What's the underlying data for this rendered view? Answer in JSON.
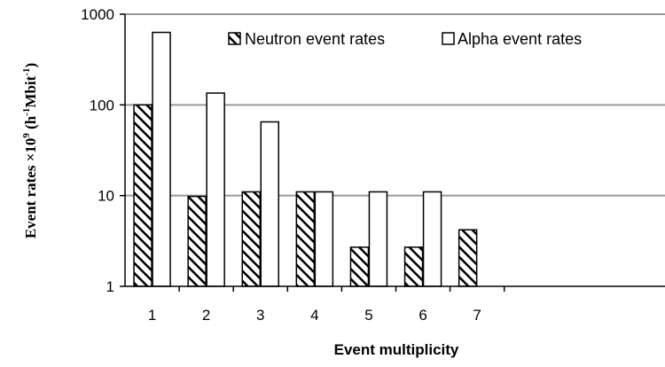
{
  "chart_data": {
    "type": "bar",
    "yscale": "log",
    "ylim": [
      1,
      1000
    ],
    "yticks": [
      "1",
      "10",
      "100",
      "1000"
    ],
    "categories": [
      "1",
      "2",
      "3",
      "4",
      "5",
      "6",
      "7"
    ],
    "xlabel": "Event multiplicity",
    "ylabel": {
      "main": "Event rates ×10",
      "exp": "9",
      "unit_open": " (h",
      "unit_exp1": "-1",
      "unit_mid": "Mbit",
      "unit_exp2": "-1",
      "unit_close": ")"
    },
    "grid": "horizontal",
    "legend_position": "top-right",
    "series": [
      {
        "name": "Neutron event rates",
        "style": "hatched",
        "values": [
          100,
          9.8,
          11,
          11,
          2.7,
          2.7,
          4.2
        ]
      },
      {
        "name": "Alpha event rates",
        "style": "white",
        "values": [
          630,
          135,
          65,
          11,
          11,
          11,
          null
        ]
      }
    ]
  },
  "colors": {
    "grid": "#999999",
    "bar_edge": "#000000",
    "bar_fill": "#ffffff"
  }
}
